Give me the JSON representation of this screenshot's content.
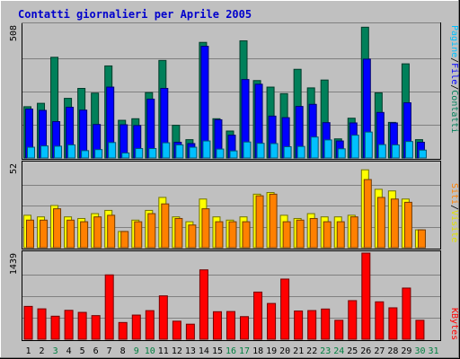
{
  "title": "Contatti giornalieri per Aprile 2005",
  "colors": {
    "background": "#C0C0C0",
    "plot_bg": "#C0C0C0",
    "grid": "#808080",
    "title": "#0000CC",
    "contatti": "#00805A",
    "file": "#0000FF",
    "pagine": "#00C0FF",
    "visite": "#FFFF00",
    "siti": "#FF8000",
    "kbytes": "#FF0000",
    "weekday": "#000000",
    "weekend": "#008040"
  },
  "chart_data": [
    {
      "type": "bar",
      "panel": "top",
      "ymax_label": "508",
      "ylim": [
        0,
        508
      ],
      "legend": {
        "pagine": "Pagine",
        "file": "File",
        "contatti": "Contatti",
        "sep1": "/",
        "sep2": "/"
      },
      "categories": [
        1,
        2,
        3,
        4,
        5,
        6,
        7,
        8,
        9,
        10,
        11,
        12,
        13,
        14,
        15,
        16,
        17,
        18,
        19,
        20,
        21,
        22,
        23,
        24,
        25,
        26,
        27,
        28,
        29,
        30,
        31
      ],
      "series": [
        {
          "name": "Contatti",
          "key": "contatti",
          "values": [
            196,
            209,
            385,
            228,
            266,
            248,
            352,
            144,
            150,
            250,
            373,
            125,
            70,
            442,
            150,
            103,
            448,
            296,
            271,
            246,
            339,
            268,
            298,
            73,
            152,
            500,
            249,
            136,
            360,
            70,
            0
          ]
        },
        {
          "name": "File",
          "key": "file",
          "values": [
            187,
            182,
            139,
            194,
            183,
            128,
            271,
            127,
            124,
            225,
            266,
            60,
            55,
            427,
            146,
            87,
            300,
            282,
            160,
            154,
            197,
            205,
            135,
            65,
            134,
            378,
            174,
            134,
            211,
            60,
            0
          ]
        },
        {
          "name": "Pagine",
          "key": "pagine",
          "values": [
            41,
            46,
            45,
            50,
            28,
            32,
            59,
            19,
            36,
            36,
            58,
            50,
            41,
            65,
            34,
            27,
            61,
            56,
            55,
            43,
            44,
            80,
            69,
            35,
            87,
            99,
            51,
            50,
            63,
            30,
            0
          ]
        }
      ]
    },
    {
      "type": "bar",
      "panel": "middle",
      "ymax_label": "52",
      "ylim": [
        0,
        52
      ],
      "legend": {
        "siti": "Siti",
        "visite": "Visite",
        "sep": "/"
      },
      "categories": [
        1,
        2,
        3,
        4,
        5,
        6,
        7,
        8,
        9,
        10,
        11,
        12,
        13,
        14,
        15,
        16,
        17,
        18,
        19,
        20,
        21,
        22,
        23,
        24,
        25,
        26,
        27,
        28,
        29,
        30,
        31
      ],
      "series": [
        {
          "name": "Visite",
          "key": "visite",
          "values": [
            20,
            19,
            26,
            19,
            18,
            21,
            23,
            10,
            17,
            23,
            31,
            19,
            16,
            30,
            19,
            17,
            19,
            33,
            34,
            20,
            18,
            21,
            19,
            19,
            20,
            48,
            36,
            35,
            30,
            11,
            0
          ]
        },
        {
          "name": "Siti",
          "key": "siti",
          "values": [
            17,
            17,
            24,
            17,
            16,
            19,
            20,
            10,
            16,
            21,
            27,
            18,
            14,
            24,
            16,
            16,
            16,
            32,
            33,
            16,
            17,
            18,
            16,
            16,
            19,
            42,
            31,
            30,
            28,
            11,
            0
          ]
        }
      ]
    },
    {
      "type": "bar",
      "panel": "bottom",
      "ymax_label": "1439",
      "ylim": [
        0,
        1439
      ],
      "legend": {
        "kbytes": "KBytes"
      },
      "categories": [
        1,
        2,
        3,
        4,
        5,
        6,
        7,
        8,
        9,
        10,
        11,
        12,
        13,
        14,
        15,
        16,
        17,
        18,
        19,
        20,
        21,
        22,
        23,
        24,
        25,
        26,
        27,
        28,
        29,
        30,
        31
      ],
      "series": [
        {
          "name": "KBytes",
          "key": "kbytes",
          "values": [
            549,
            508,
            385,
            483,
            449,
            395,
            1075,
            280,
            404,
            478,
            725,
            302,
            252,
            1159,
            460,
            463,
            378,
            788,
            598,
            1005,
            472,
            479,
            505,
            317,
            645,
            1439,
            625,
            525,
            855,
            317,
            0
          ]
        }
      ]
    }
  ],
  "weekend_days": [
    3,
    9,
    10,
    16,
    17,
    23,
    24,
    30,
    31
  ]
}
